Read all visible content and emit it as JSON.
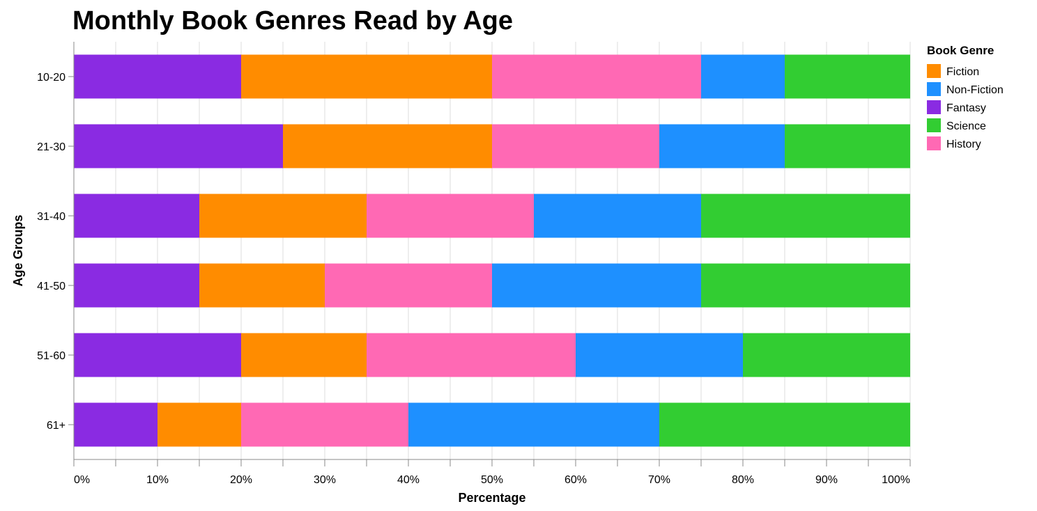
{
  "chart_data": {
    "type": "bar",
    "orientation": "horizontal",
    "stacked": "normalize",
    "title": "Monthly Book Genres Read by Age",
    "xlabel": "Percentage",
    "ylabel": "Age Groups",
    "xlim": [
      0,
      100
    ],
    "x_ticks": [
      "0%",
      "10%",
      "20%",
      "30%",
      "40%",
      "50%",
      "60%",
      "70%",
      "80%",
      "90%",
      "100%"
    ],
    "grid": true,
    "legend_title": "Book Genre",
    "legend_position": "right",
    "categories": [
      "10-20",
      "21-30",
      "31-40",
      "41-50",
      "51-60",
      "61+"
    ],
    "stack_order": [
      "Fantasy",
      "Fiction",
      "History",
      "Non-Fiction",
      "Science"
    ],
    "series": [
      {
        "name": "Fiction",
        "color": "#ff8c00",
        "values": [
          30,
          25,
          20,
          15,
          15,
          10
        ]
      },
      {
        "name": "Non-Fiction",
        "color": "#1e90ff",
        "values": [
          10,
          15,
          20,
          25,
          20,
          30
        ]
      },
      {
        "name": "Fantasy",
        "color": "#8a2be2",
        "values": [
          20,
          25,
          15,
          15,
          20,
          10
        ]
      },
      {
        "name": "Science",
        "color": "#32cd32",
        "values": [
          15,
          15,
          25,
          25,
          20,
          30
        ]
      },
      {
        "name": "History",
        "color": "#ff69b4",
        "values": [
          25,
          20,
          20,
          20,
          25,
          20
        ]
      }
    ]
  }
}
